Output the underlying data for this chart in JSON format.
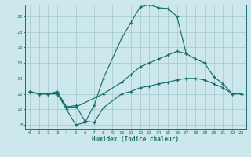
{
  "xlabel": "Humidex (Indice chaleur)",
  "xlim": [
    -0.5,
    23.5
  ],
  "ylim": [
    7.5,
    23.5
  ],
  "yticks": [
    8,
    10,
    12,
    14,
    16,
    18,
    20,
    22
  ],
  "xticks": [
    0,
    1,
    2,
    3,
    4,
    5,
    6,
    7,
    8,
    9,
    10,
    11,
    12,
    13,
    14,
    15,
    16,
    17,
    18,
    19,
    20,
    21,
    22,
    23
  ],
  "bg_color": "#cce8ec",
  "grid_color": "#a8cdd3",
  "line_color": "#1a6e6a",
  "line1_x": [
    0,
    1,
    2,
    3,
    4,
    5,
    6,
    7,
    8,
    10,
    11,
    12,
    13,
    14,
    15,
    16,
    17
  ],
  "line1_y": [
    12.3,
    12.0,
    12.0,
    12.0,
    10.0,
    8.0,
    8.3,
    10.5,
    14.0,
    19.2,
    21.2,
    23.2,
    23.5,
    23.1,
    23.0,
    22.0,
    17.2
  ],
  "line2_x": [
    0,
    1,
    2,
    3,
    4,
    5,
    8,
    10,
    11,
    12,
    13,
    14,
    15,
    16,
    17,
    18,
    19,
    20,
    21,
    22,
    23
  ],
  "line2_y": [
    12.3,
    12.0,
    12.0,
    12.3,
    10.3,
    10.3,
    12.0,
    13.5,
    14.5,
    15.5,
    16.0,
    16.5,
    17.0,
    17.5,
    17.2,
    16.5,
    16.0,
    14.2,
    13.3,
    12.0,
    12.0
  ],
  "line3_x": [
    0,
    1,
    2,
    3,
    4,
    5,
    6,
    7,
    8,
    10,
    11,
    12,
    13,
    14,
    15,
    16,
    17,
    18,
    19,
    20,
    21,
    22,
    23
  ],
  "line3_y": [
    12.3,
    12.0,
    12.0,
    12.0,
    10.3,
    10.5,
    8.5,
    8.3,
    10.2,
    12.0,
    12.3,
    12.8,
    13.0,
    13.3,
    13.5,
    13.8,
    14.0,
    14.0,
    13.8,
    13.3,
    12.8,
    12.0,
    12.0
  ]
}
